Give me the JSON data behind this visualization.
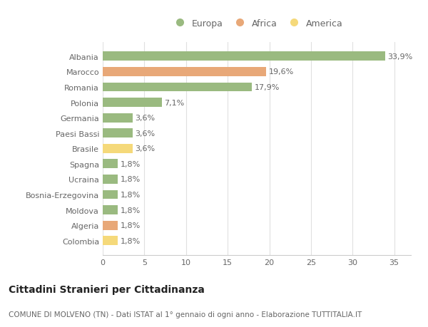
{
  "categories": [
    "Colombia",
    "Algeria",
    "Moldova",
    "Bosnia-Erzegovina",
    "Ucraina",
    "Spagna",
    "Brasile",
    "Paesi Bassi",
    "Germania",
    "Polonia",
    "Romania",
    "Marocco",
    "Albania"
  ],
  "values": [
    1.8,
    1.8,
    1.8,
    1.8,
    1.8,
    1.8,
    3.6,
    3.6,
    3.6,
    7.1,
    17.9,
    19.6,
    33.9
  ],
  "colors": [
    "#f5d97a",
    "#e8a878",
    "#9aba80",
    "#9aba80",
    "#9aba80",
    "#9aba80",
    "#f5d97a",
    "#9aba80",
    "#9aba80",
    "#9aba80",
    "#9aba80",
    "#e8a878",
    "#9aba80"
  ],
  "labels": [
    "1,8%",
    "1,8%",
    "1,8%",
    "1,8%",
    "1,8%",
    "1,8%",
    "3,6%",
    "3,6%",
    "3,6%",
    "7,1%",
    "17,9%",
    "19,6%",
    "33,9%"
  ],
  "legend": [
    {
      "label": "Europa",
      "color": "#9aba80"
    },
    {
      "label": "Africa",
      "color": "#e8a878"
    },
    {
      "label": "America",
      "color": "#f5d97a"
    }
  ],
  "title": "Cittadini Stranieri per Cittadinanza",
  "subtitle": "COMUNE DI MOLVENO (TN) - Dati ISTAT al 1° gennaio di ogni anno - Elaborazione TUTTITALIA.IT",
  "xlim": [
    0,
    37
  ],
  "xticks": [
    0,
    5,
    10,
    15,
    20,
    25,
    30,
    35
  ],
  "background_color": "#ffffff",
  "grid_color": "#e0e0e0",
  "bar_height": 0.6,
  "label_fontsize": 8,
  "tick_fontsize": 8,
  "title_fontsize": 10,
  "subtitle_fontsize": 7.5
}
